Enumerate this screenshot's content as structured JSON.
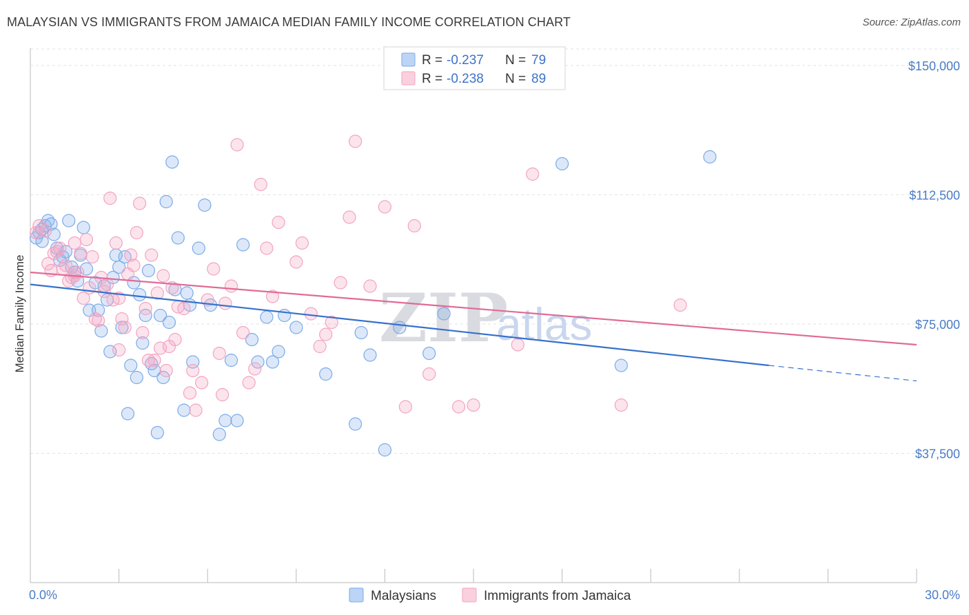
{
  "header": {
    "title": "MALAYSIAN VS IMMIGRANTS FROM JAMAICA MEDIAN FAMILY INCOME CORRELATION CHART",
    "source": "Source: ZipAtlas.com"
  },
  "watermark": {
    "part1": "ZIP",
    "part2": "atlas"
  },
  "chart_data": {
    "type": "scatter",
    "title": "MALAYSIAN VS IMMIGRANTS FROM JAMAICA MEDIAN FAMILY INCOME CORRELATION CHART",
    "xlabel": "",
    "ylabel": "Median Family Income",
    "xlim": [
      0,
      30
    ],
    "ylim": [
      0,
      155000
    ],
    "x_tick_labels": [
      "0.0%",
      "30.0%"
    ],
    "y_ticks": [
      37500,
      75000,
      112500,
      150000
    ],
    "y_tick_labels": [
      "$37,500",
      "$75,000",
      "$112,500",
      "$150,000"
    ],
    "grid": true,
    "legend_position": "top-center",
    "series": [
      {
        "name": "Malaysians",
        "color": "#7aaae8",
        "r_label": "R = ",
        "r_value": "-0.237",
        "n_label": "N = ",
        "n_value": "79",
        "trend": {
          "x": [
            0.0,
            25.0
          ],
          "y": [
            86500,
            63000
          ],
          "dashed_to": [
            30.0,
            58500
          ]
        },
        "points": [
          [
            0.2,
            100000
          ],
          [
            0.3,
            101500
          ],
          [
            0.4,
            102500
          ],
          [
            0.4,
            99000
          ],
          [
            0.5,
            103500
          ],
          [
            0.6,
            105000
          ],
          [
            0.7,
            104000
          ],
          [
            0.8,
            101000
          ],
          [
            0.9,
            97000
          ],
          [
            1.0,
            93500
          ],
          [
            1.1,
            94500
          ],
          [
            1.2,
            96000
          ],
          [
            1.3,
            105000
          ],
          [
            1.4,
            91500
          ],
          [
            1.5,
            90000
          ],
          [
            1.6,
            87500
          ],
          [
            1.7,
            95000
          ],
          [
            1.8,
            103000
          ],
          [
            1.9,
            91000
          ],
          [
            2.0,
            79000
          ],
          [
            2.2,
            87000
          ],
          [
            2.3,
            79000
          ],
          [
            2.4,
            73000
          ],
          [
            2.5,
            86000
          ],
          [
            2.6,
            82000
          ],
          [
            2.7,
            67000
          ],
          [
            2.8,
            88500
          ],
          [
            2.9,
            95000
          ],
          [
            3.0,
            91500
          ],
          [
            3.1,
            74000
          ],
          [
            3.2,
            94500
          ],
          [
            3.3,
            49000
          ],
          [
            3.4,
            63000
          ],
          [
            3.5,
            87000
          ],
          [
            3.6,
            59500
          ],
          [
            3.7,
            83500
          ],
          [
            3.8,
            69500
          ],
          [
            3.9,
            77500
          ],
          [
            4.0,
            90500
          ],
          [
            4.1,
            63500
          ],
          [
            4.2,
            61500
          ],
          [
            4.3,
            43500
          ],
          [
            4.4,
            77500
          ],
          [
            4.5,
            59500
          ],
          [
            4.6,
            110500
          ],
          [
            4.7,
            75500
          ],
          [
            4.8,
            122000
          ],
          [
            4.9,
            85000
          ],
          [
            5.0,
            100000
          ],
          [
            5.2,
            50000
          ],
          [
            5.3,
            84000
          ],
          [
            5.4,
            80500
          ],
          [
            5.5,
            64000
          ],
          [
            5.7,
            97000
          ],
          [
            5.9,
            109500
          ],
          [
            6.1,
            80500
          ],
          [
            6.4,
            43000
          ],
          [
            6.6,
            47000
          ],
          [
            6.8,
            64500
          ],
          [
            7.0,
            47000
          ],
          [
            7.2,
            98000
          ],
          [
            7.5,
            70500
          ],
          [
            7.7,
            64000
          ],
          [
            8.0,
            77000
          ],
          [
            8.2,
            64000
          ],
          [
            8.4,
            67000
          ],
          [
            8.6,
            77500
          ],
          [
            9.0,
            74000
          ],
          [
            10.0,
            60500
          ],
          [
            11.0,
            46000
          ],
          [
            11.2,
            72500
          ],
          [
            11.5,
            66000
          ],
          [
            12.0,
            38500
          ],
          [
            12.5,
            74000
          ],
          [
            13.5,
            66500
          ],
          [
            18.0,
            121500
          ],
          [
            20.0,
            63000
          ],
          [
            23.0,
            123500
          ],
          [
            14.0,
            78000
          ]
        ]
      },
      {
        "name": "Immigrants from Jamaica",
        "color": "#f2a3bf",
        "r_label": "R = ",
        "r_value": "-0.238",
        "n_label": "N = ",
        "n_value": "89",
        "trend": {
          "x": [
            0.0,
            30.0
          ],
          "y": [
            90000,
            69000
          ]
        },
        "points": [
          [
            0.2,
            101500
          ],
          [
            0.3,
            103500
          ],
          [
            0.5,
            102000
          ],
          [
            0.6,
            92500
          ],
          [
            0.7,
            90500
          ],
          [
            0.8,
            95500
          ],
          [
            0.9,
            96000
          ],
          [
            1.0,
            97000
          ],
          [
            1.1,
            91000
          ],
          [
            1.2,
            92000
          ],
          [
            1.3,
            87500
          ],
          [
            1.4,
            88500
          ],
          [
            1.5,
            89000
          ],
          [
            1.6,
            90000
          ],
          [
            1.7,
            95500
          ],
          [
            1.8,
            82500
          ],
          [
            1.9,
            99500
          ],
          [
            2.0,
            85500
          ],
          [
            2.1,
            94500
          ],
          [
            2.2,
            76500
          ],
          [
            2.3,
            76000
          ],
          [
            2.4,
            88500
          ],
          [
            2.5,
            84500
          ],
          [
            2.6,
            86500
          ],
          [
            2.7,
            111500
          ],
          [
            2.8,
            82000
          ],
          [
            2.9,
            98500
          ],
          [
            3.0,
            67500
          ],
          [
            3.1,
            76500
          ],
          [
            3.2,
            74000
          ],
          [
            3.3,
            89500
          ],
          [
            3.4,
            95000
          ],
          [
            3.5,
            92000
          ],
          [
            3.6,
            101500
          ],
          [
            3.7,
            110000
          ],
          [
            3.8,
            72500
          ],
          [
            3.9,
            79500
          ],
          [
            4.0,
            64500
          ],
          [
            4.1,
            95000
          ],
          [
            4.2,
            64500
          ],
          [
            4.3,
            84000
          ],
          [
            4.4,
            68000
          ],
          [
            4.5,
            89000
          ],
          [
            4.6,
            61500
          ],
          [
            4.7,
            68500
          ],
          [
            4.8,
            85500
          ],
          [
            4.9,
            70500
          ],
          [
            5.0,
            80000
          ],
          [
            5.2,
            79500
          ],
          [
            5.4,
            55000
          ],
          [
            5.5,
            61500
          ],
          [
            5.6,
            50000
          ],
          [
            5.8,
            58000
          ],
          [
            6.0,
            82000
          ],
          [
            6.2,
            91000
          ],
          [
            6.4,
            66500
          ],
          [
            6.6,
            81000
          ],
          [
            6.8,
            86000
          ],
          [
            7.0,
            127000
          ],
          [
            7.2,
            72500
          ],
          [
            7.4,
            58000
          ],
          [
            7.6,
            62000
          ],
          [
            7.8,
            115500
          ],
          [
            8.0,
            97000
          ],
          [
            8.2,
            83000
          ],
          [
            8.4,
            104500
          ],
          [
            9.0,
            93000
          ],
          [
            9.2,
            98500
          ],
          [
            9.5,
            78000
          ],
          [
            10.0,
            72000
          ],
          [
            10.5,
            87000
          ],
          [
            10.8,
            106000
          ],
          [
            11.0,
            128000
          ],
          [
            11.5,
            86000
          ],
          [
            12.0,
            109000
          ],
          [
            13.0,
            103500
          ],
          [
            13.5,
            60500
          ],
          [
            14.5,
            51000
          ],
          [
            15.0,
            51500
          ],
          [
            16.5,
            69000
          ],
          [
            17.0,
            118500
          ],
          [
            20.0,
            51500
          ],
          [
            22.0,
            80500
          ],
          [
            6.5,
            54500
          ],
          [
            3.0,
            82500
          ],
          [
            1.5,
            98500
          ],
          [
            10.2,
            75500
          ],
          [
            12.7,
            51000
          ],
          [
            9.8,
            68500
          ]
        ]
      }
    ]
  }
}
